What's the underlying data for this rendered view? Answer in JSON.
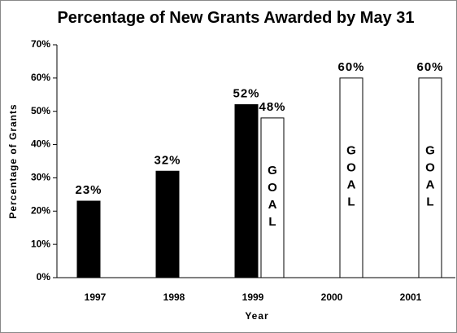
{
  "chart_data": {
    "type": "bar",
    "title": "Percentage of New Grants Awarded by May 31",
    "y_label": "Percentage of Grants",
    "x_label": "Year",
    "categories": [
      "1997",
      "1998",
      "1999",
      "2000",
      "2001"
    ],
    "series": [
      {
        "color": "#000000",
        "values": [
          23,
          32,
          52,
          null,
          null
        ],
        "value_labels": [
          "23%",
          "32%",
          "52%",
          null,
          null
        ]
      },
      {
        "name": "GOAL",
        "color": "#ffffff",
        "values": [
          null,
          null,
          48,
          60,
          60
        ],
        "value_labels": [
          null,
          null,
          "48%",
          "60%",
          "60%"
        ]
      }
    ],
    "ylim": [
      0,
      70
    ],
    "yticks": [
      {
        "value": 0,
        "label": "0%"
      },
      {
        "value": 10,
        "label": "10%"
      },
      {
        "value": 20,
        "label": "20%"
      },
      {
        "value": 30,
        "label": "30%"
      },
      {
        "value": 40,
        "label": "40%"
      },
      {
        "value": 50,
        "label": "50%"
      },
      {
        "value": 60,
        "label": "60%"
      },
      {
        "value": 70,
        "label": "70%"
      }
    ],
    "grid": false
  }
}
